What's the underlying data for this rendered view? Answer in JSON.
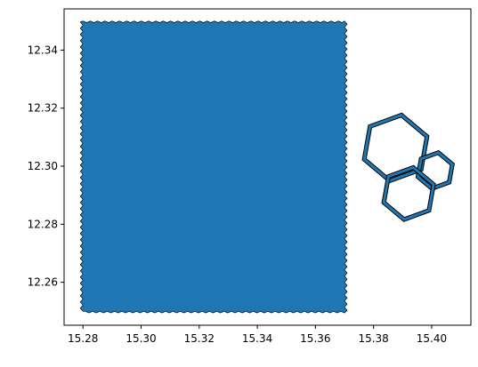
{
  "chart_data": {
    "type": "map",
    "title": "",
    "xlabel": "",
    "ylabel": "",
    "xlim": [
      15.2735,
      15.4135
    ],
    "ylim": [
      12.2452,
      12.3542
    ],
    "grid": false,
    "x_ticks": [
      "15.28",
      "15.30",
      "15.32",
      "15.34",
      "15.36",
      "15.38",
      "15.40"
    ],
    "y_ticks": [
      "12.26",
      "12.28",
      "12.30",
      "12.32",
      "12.34"
    ],
    "fill_color": "#1f77b4",
    "edge_color": "#000000",
    "shapes": [
      {
        "kind": "filled-rectangle-hexagonal-edges",
        "x": [
          15.28,
          15.37
        ],
        "y": [
          12.25,
          12.35
        ]
      },
      {
        "kind": "hexagon-outline",
        "center": [
          15.3876,
          12.3063
        ],
        "radius": 0.0115
      },
      {
        "kind": "hexagon-outline",
        "center": [
          15.4012,
          12.2985
        ],
        "radius": 0.0063
      },
      {
        "kind": "hexagon-outline",
        "center": [
          15.3921,
          12.2906
        ],
        "radius": 0.0091
      }
    ]
  }
}
